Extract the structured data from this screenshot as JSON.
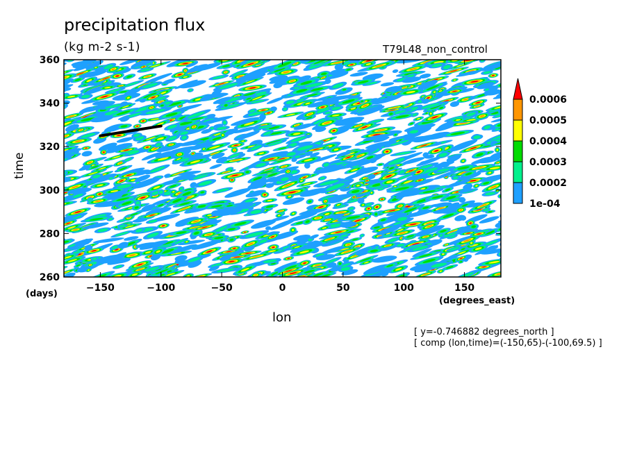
{
  "chart_data": {
    "type": "heatmap",
    "title": "precipitation flux",
    "units": "(kg m-2 s-1)",
    "run_label": "T79L48_non_control",
    "xlabel": "lon",
    "ylabel": "time",
    "x_unit": "(degrees_east)",
    "y_unit": "(days)",
    "xlim": [
      -180,
      180
    ],
    "ylim": [
      260,
      360
    ],
    "x_ticks": [
      -150,
      -100,
      -50,
      0,
      50,
      100,
      150
    ],
    "y_ticks": [
      260,
      280,
      300,
      320,
      340,
      360
    ],
    "levels": [
      0.0001,
      0.0002,
      0.0003,
      0.0004,
      0.0005,
      0.0006
    ],
    "colorbar_labels": [
      "1e-04",
      "0.0002",
      "0.0003",
      "0.0004",
      "0.0005",
      "0.0006"
    ],
    "colorbar_colors": [
      "#1ea0ff",
      "#00f08c",
      "#00dc00",
      "#ffff00",
      "#ff9600",
      "#ff0000"
    ],
    "annotations": [
      "[ y=-0.746882 degrees_north ]",
      "[ comp (lon,time)=(-150,65)-(-100,69.5) ]"
    ],
    "overlay_line": {
      "x": [
        -150,
        -100
      ],
      "y": [
        325,
        329.5
      ]
    }
  }
}
